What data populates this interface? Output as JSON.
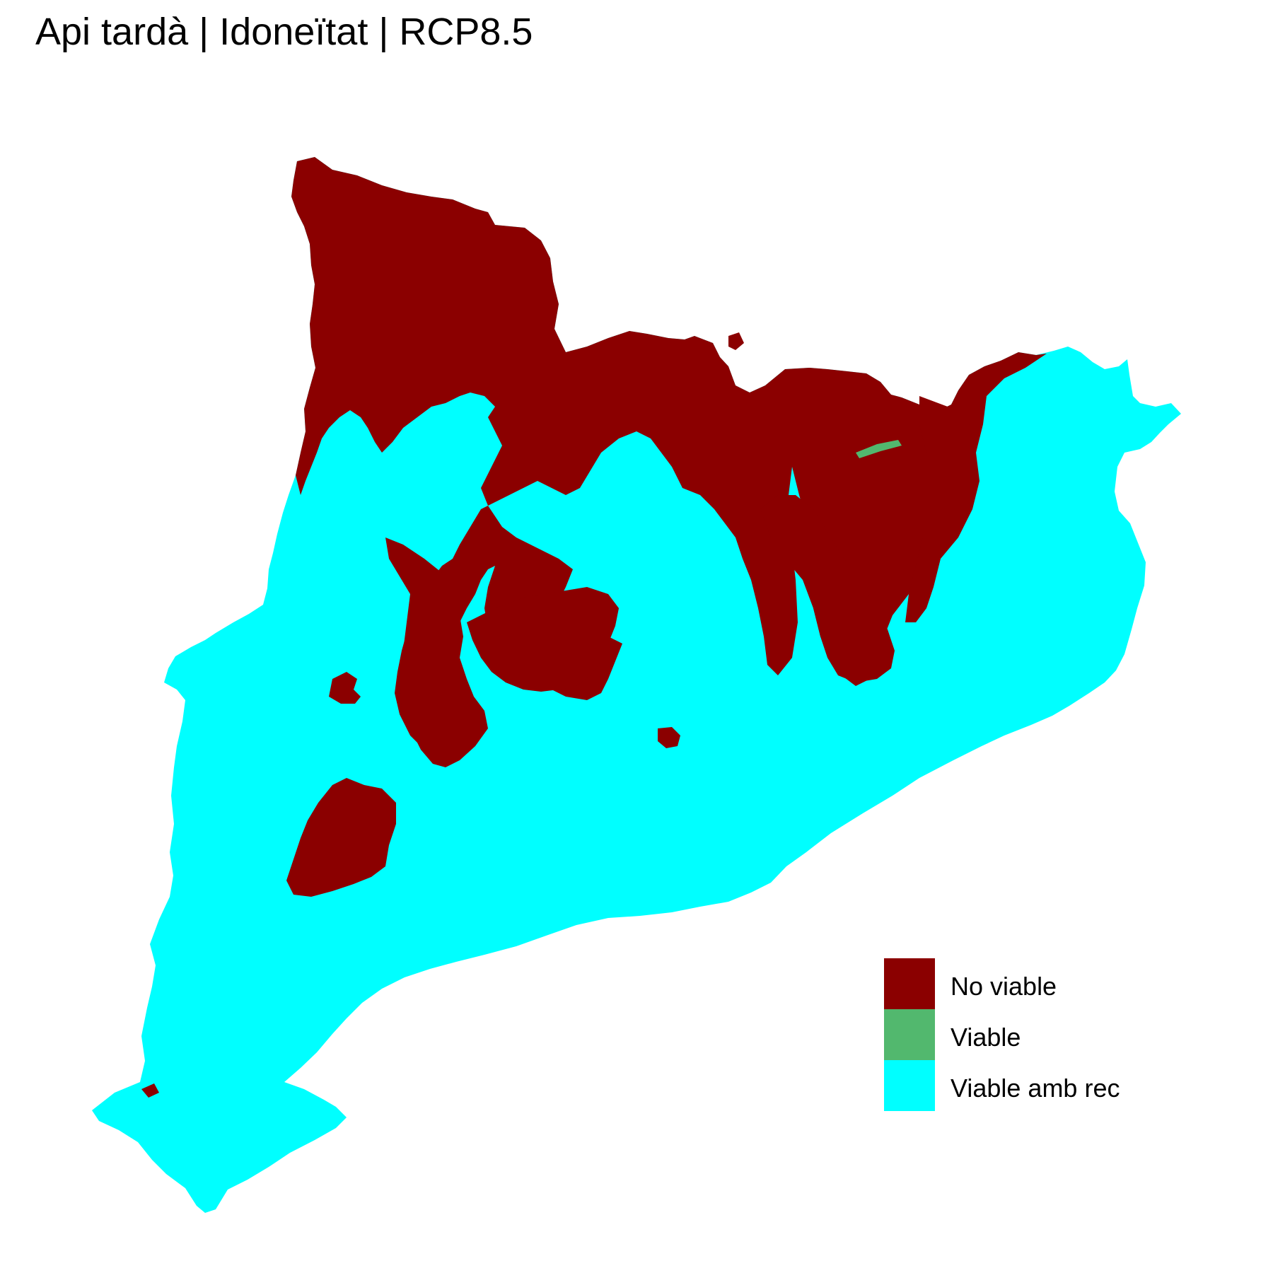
{
  "title": "Api tardà | Idoneïtat | RCP8.5",
  "legend": {
    "items": [
      {
        "label": "No viable",
        "color": "#8B0000"
      },
      {
        "label": "Viable",
        "color": "#52B86E"
      },
      {
        "label": "Viable amb rec",
        "color": "#00FFFF"
      }
    ]
  },
  "colors": {
    "no_viable": "#8B0000",
    "viable": "#52B86E",
    "viable_amb_rec": "#00FFFF",
    "background": "#FFFFFF"
  }
}
